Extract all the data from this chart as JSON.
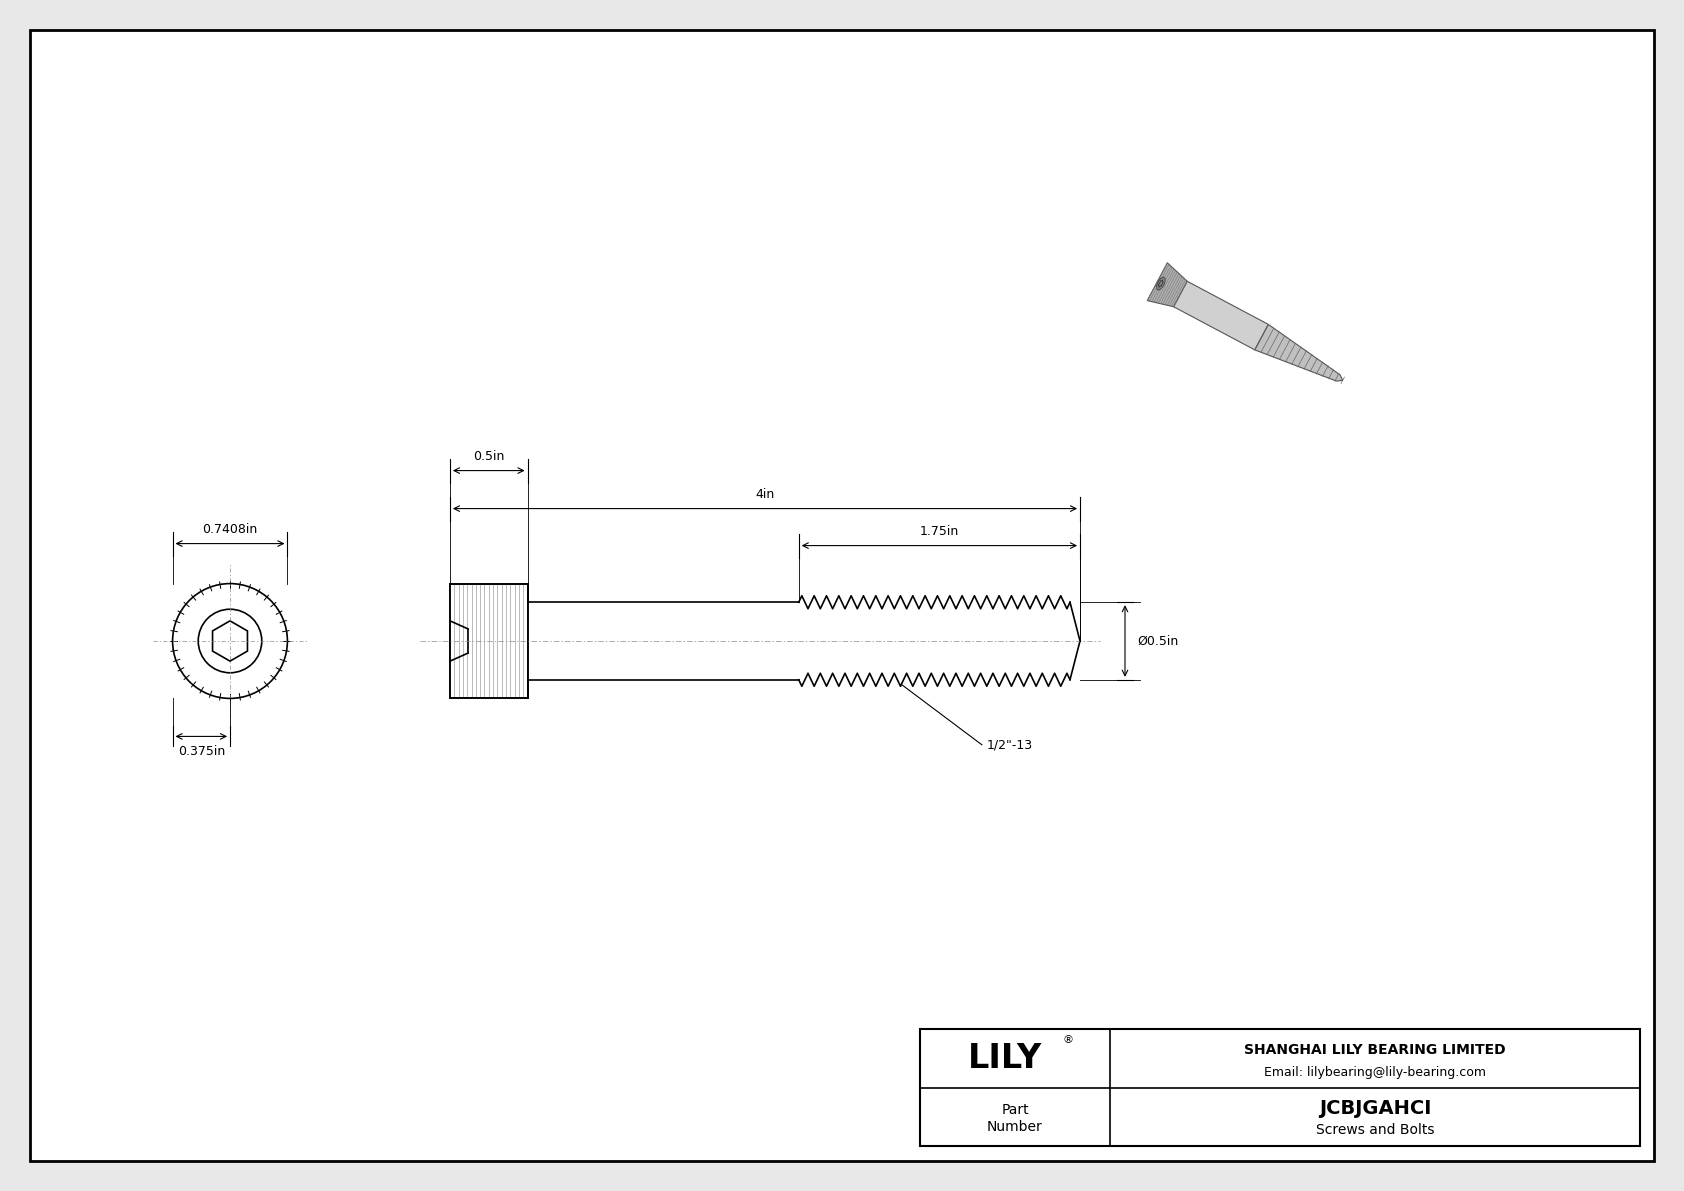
{
  "bg_color": "#e8e8e8",
  "drawing_bg": "#ffffff",
  "line_color": "#000000",
  "dim_color": "#000000",
  "title_company": "SHANGHAI LILY BEARING LIMITED",
  "title_email": "Email: lilybearing@lily-bearing.com",
  "part_number": "JCBJGAHCI",
  "part_category": "Screws and Bolts",
  "brand": "LILY",
  "dim_head_diameter": "0.7408in",
  "dim_head_length": "0.375in",
  "dim_shank_length": "0.5in",
  "dim_total_length": "4in",
  "dim_thread_length": "1.75in",
  "dim_thread_diameter": "Ø0.5in",
  "dim_thread_pitch": "1/2\"-13"
}
